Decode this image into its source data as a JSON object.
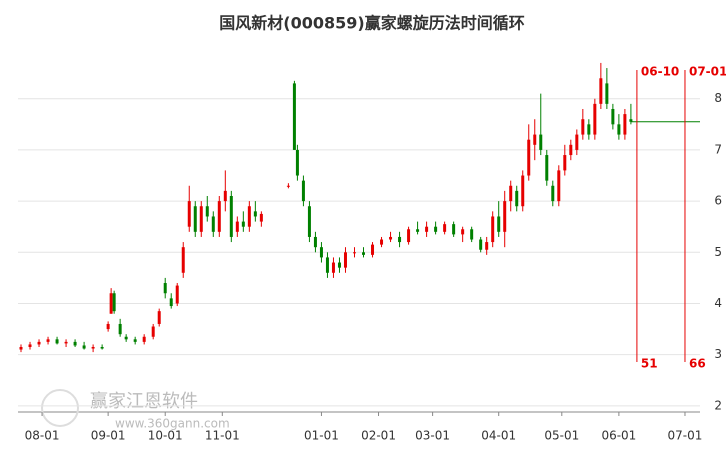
{
  "chart_data": {
    "type": "candlestick",
    "title": "国风新材(000859)赢家螺旋历法时间循环",
    "watermark": "赢家江恩软件",
    "watermark_url": "www.360gann.com",
    "up_color": "#e60000",
    "down_color": "#008000",
    "ylim": [
      1.88,
      9.05
    ],
    "yticks": [
      2,
      3,
      4,
      5,
      6,
      7,
      8
    ],
    "grid": true,
    "xlim": [
      0,
      227
    ],
    "xticks": [
      {
        "value": 8,
        "label": "08-01"
      },
      {
        "value": 30,
        "label": "09-01"
      },
      {
        "value": 49,
        "label": "10-01"
      },
      {
        "value": 68,
        "label": "11-01"
      },
      {
        "value": 101,
        "label": "01-01"
      },
      {
        "value": 120,
        "label": "02-01"
      },
      {
        "value": 138,
        "label": "03-01"
      },
      {
        "value": 160,
        "label": "04-01"
      },
      {
        "value": 181,
        "label": "05-01"
      },
      {
        "value": 200,
        "label": "06-01"
      },
      {
        "value": 222,
        "label": "07-01"
      }
    ],
    "last_price": 7.55,
    "cycle_lines": [
      {
        "x": 206,
        "label": "06-10",
        "count": 51
      },
      {
        "x": 222,
        "label": "07-01",
        "count": 66
      }
    ],
    "candles": [
      [
        1,
        3.1,
        3.2,
        3.05,
        3.15
      ],
      [
        4,
        3.15,
        3.25,
        3.1,
        3.2
      ],
      [
        7,
        3.2,
        3.3,
        3.15,
        3.25
      ],
      [
        10,
        3.25,
        3.35,
        3.2,
        3.3
      ],
      [
        13,
        3.3,
        3.35,
        3.2,
        3.22
      ],
      [
        16,
        3.22,
        3.3,
        3.15,
        3.25
      ],
      [
        19,
        3.25,
        3.3,
        3.15,
        3.18
      ],
      [
        22,
        3.18,
        3.25,
        3.1,
        3.12
      ],
      [
        25,
        3.12,
        3.2,
        3.05,
        3.15
      ],
      [
        28,
        3.15,
        3.2,
        3.1,
        3.12
      ],
      [
        30,
        3.5,
        3.65,
        3.45,
        3.6
      ],
      [
        31,
        3.8,
        4.3,
        3.8,
        4.2
      ],
      [
        32,
        4.2,
        4.25,
        3.8,
        3.85
      ],
      [
        34,
        3.6,
        3.7,
        3.35,
        3.4
      ],
      [
        36,
        3.35,
        3.4,
        3.25,
        3.3
      ],
      [
        39,
        3.3,
        3.35,
        3.2,
        3.25
      ],
      [
        42,
        3.25,
        3.4,
        3.2,
        3.35
      ],
      [
        45,
        3.35,
        3.6,
        3.3,
        3.55
      ],
      [
        47,
        3.6,
        3.9,
        3.55,
        3.85
      ],
      [
        49,
        4.4,
        4.5,
        4.1,
        4.2
      ],
      [
        51,
        4.1,
        4.2,
        3.9,
        3.95
      ],
      [
        53,
        4.0,
        4.4,
        3.95,
        4.35
      ],
      [
        55,
        4.6,
        5.2,
        4.5,
        5.1
      ],
      [
        57,
        5.5,
        6.3,
        5.4,
        6.0
      ],
      [
        59,
        5.9,
        6.0,
        5.3,
        5.4
      ],
      [
        61,
        5.4,
        6.0,
        5.3,
        5.9
      ],
      [
        63,
        5.9,
        6.1,
        5.6,
        5.7
      ],
      [
        65,
        5.7,
        5.8,
        5.3,
        5.4
      ],
      [
        67,
        5.4,
        6.1,
        5.3,
        6.0
      ],
      [
        69,
        6.0,
        6.6,
        5.8,
        6.2
      ],
      [
        71,
        6.1,
        6.2,
        5.2,
        5.3
      ],
      [
        73,
        5.4,
        5.7,
        5.3,
        5.6
      ],
      [
        75,
        5.6,
        5.8,
        5.4,
        5.5
      ],
      [
        77,
        5.5,
        6.0,
        5.4,
        5.9
      ],
      [
        79,
        5.8,
        6.0,
        5.6,
        5.7
      ],
      [
        81,
        5.6,
        5.8,
        5.5,
        5.75
      ],
      [
        90,
        6.3,
        6.35,
        6.25,
        6.3
      ],
      [
        92,
        8.3,
        8.35,
        7.0,
        7.0
      ],
      [
        93,
        7.0,
        7.1,
        6.4,
        6.5
      ],
      [
        95,
        6.4,
        6.5,
        5.9,
        6.0
      ],
      [
        97,
        5.9,
        6.0,
        5.2,
        5.3
      ],
      [
        99,
        5.3,
        5.4,
        5.0,
        5.1
      ],
      [
        101,
        5.1,
        5.2,
        4.8,
        4.9
      ],
      [
        103,
        4.9,
        5.0,
        4.5,
        4.6
      ],
      [
        105,
        4.6,
        4.9,
        4.5,
        4.8
      ],
      [
        107,
        4.8,
        4.9,
        4.6,
        4.7
      ],
      [
        109,
        4.7,
        5.1,
        4.6,
        5.0
      ],
      [
        112,
        5.0,
        5.1,
        4.9,
        5.0
      ],
      [
        115,
        5.0,
        5.1,
        4.9,
        4.95
      ],
      [
        118,
        4.95,
        5.2,
        4.9,
        5.15
      ],
      [
        121,
        5.15,
        5.3,
        5.1,
        5.25
      ],
      [
        124,
        5.25,
        5.4,
        5.2,
        5.3
      ],
      [
        127,
        5.3,
        5.4,
        5.1,
        5.2
      ],
      [
        130,
        5.2,
        5.5,
        5.15,
        5.45
      ],
      [
        133,
        5.45,
        5.6,
        5.35,
        5.4
      ],
      [
        136,
        5.4,
        5.6,
        5.3,
        5.5
      ],
      [
        139,
        5.5,
        5.6,
        5.35,
        5.4
      ],
      [
        142,
        5.4,
        5.6,
        5.35,
        5.55
      ],
      [
        145,
        5.55,
        5.6,
        5.3,
        5.35
      ],
      [
        148,
        5.35,
        5.5,
        5.2,
        5.45
      ],
      [
        151,
        5.45,
        5.5,
        5.2,
        5.25
      ],
      [
        154,
        5.25,
        5.3,
        5.0,
        5.05
      ],
      [
        156,
        5.05,
        5.3,
        4.95,
        5.2
      ],
      [
        158,
        5.2,
        5.8,
        5.1,
        5.7
      ],
      [
        160,
        5.7,
        6.0,
        5.3,
        5.4
      ],
      [
        162,
        5.4,
        6.2,
        5.1,
        6.0
      ],
      [
        164,
        6.0,
        6.4,
        5.8,
        6.3
      ],
      [
        166,
        6.2,
        6.3,
        5.8,
        5.9
      ],
      [
        168,
        5.9,
        6.6,
        5.8,
        6.5
      ],
      [
        170,
        6.5,
        7.5,
        6.4,
        7.2
      ],
      [
        172,
        7.1,
        7.6,
        6.8,
        7.3
      ],
      [
        174,
        7.3,
        8.1,
        6.9,
        7.0
      ],
      [
        176,
        6.9,
        7.0,
        6.3,
        6.4
      ],
      [
        178,
        6.3,
        6.4,
        5.9,
        6.0
      ],
      [
        180,
        6.0,
        6.7,
        5.9,
        6.6
      ],
      [
        182,
        6.6,
        7.1,
        6.5,
        6.9
      ],
      [
        184,
        6.9,
        7.2,
        6.8,
        7.1
      ],
      [
        186,
        7.0,
        7.4,
        6.9,
        7.3
      ],
      [
        188,
        7.3,
        7.8,
        7.2,
        7.6
      ],
      [
        190,
        7.5,
        7.6,
        7.2,
        7.3
      ],
      [
        192,
        7.3,
        8.0,
        7.2,
        7.9
      ],
      [
        194,
        7.9,
        8.7,
        7.8,
        8.4
      ],
      [
        196,
        8.3,
        8.6,
        7.8,
        7.9
      ],
      [
        198,
        7.8,
        7.9,
        7.4,
        7.5
      ],
      [
        200,
        7.5,
        7.7,
        7.2,
        7.3
      ],
      [
        202,
        7.3,
        7.8,
        7.2,
        7.7
      ],
      [
        204,
        7.6,
        7.9,
        7.5,
        7.55
      ]
    ]
  }
}
